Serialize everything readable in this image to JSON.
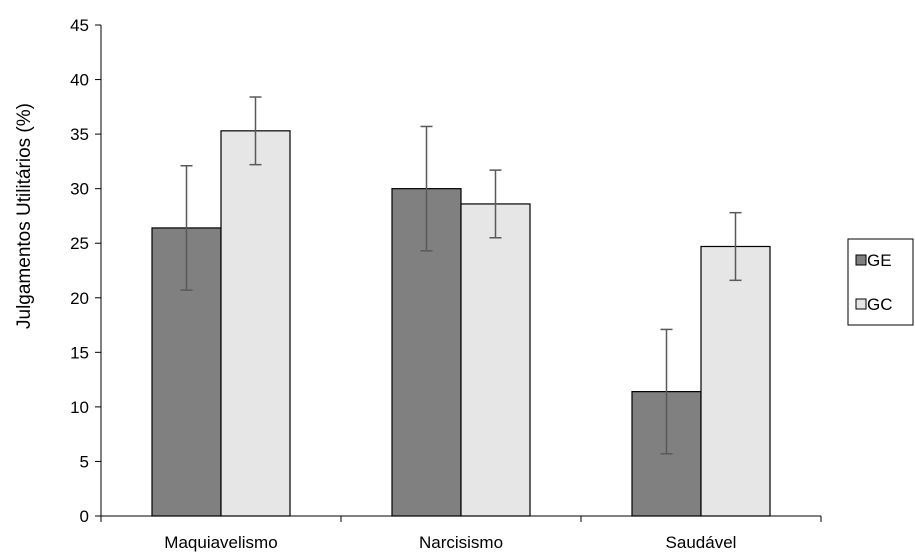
{
  "chart_data": {
    "type": "bar",
    "categories": [
      "Maquiavelismo",
      "Narcisismo",
      "Saudável"
    ],
    "series": [
      {
        "name": "GE",
        "values": [
          26.4,
          30.0,
          11.4
        ],
        "error_low": [
          20.7,
          24.3,
          5.7
        ],
        "error_high": [
          32.1,
          35.7,
          17.1
        ],
        "color": "#808080"
      },
      {
        "name": "GC",
        "values": [
          35.3,
          28.6,
          24.7
        ],
        "error_low": [
          32.2,
          25.5,
          21.6
        ],
        "error_high": [
          38.4,
          31.7,
          27.8
        ],
        "color": "#e6e6e6"
      }
    ],
    "ylabel": "Julgamentos Utilitários (%)",
    "xlabel": "",
    "ylim": [
      0,
      45
    ],
    "yticks": [
      "0",
      "5",
      "10",
      "15",
      "20",
      "25",
      "30",
      "35",
      "40",
      "45"
    ],
    "grid": false,
    "legend_position": "right",
    "error_bar_color": "#595959"
  }
}
